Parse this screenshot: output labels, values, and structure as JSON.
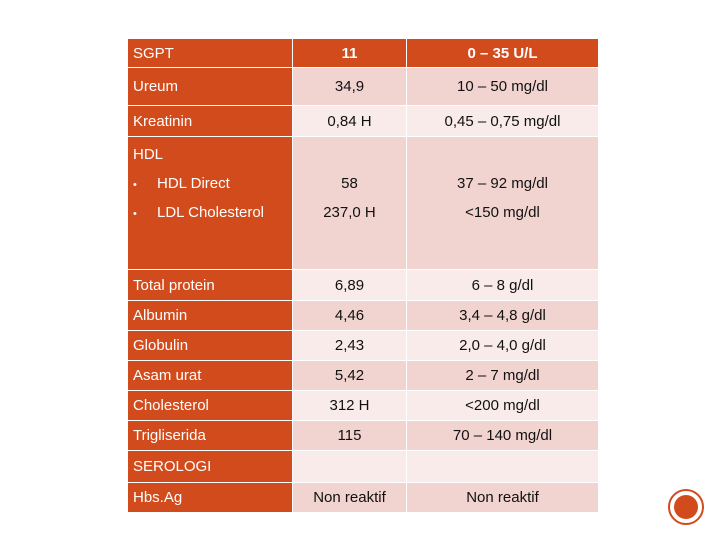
{
  "header": {
    "test": "SGPT",
    "result": "11",
    "reference": "0 – 35 U/L"
  },
  "rows": {
    "ureum": {
      "test": "Ureum",
      "result": "34,9",
      "reference": "10 – 50 mg/dl"
    },
    "kreatinin": {
      "test": "Kreatinin",
      "result": "0,84 H",
      "reference": "0,45 – 0,75 mg/dl"
    },
    "hdl": {
      "section": "HDL",
      "bullet": "•",
      "hdl_direct": {
        "test": "HDL Direct",
        "result": "58",
        "reference": "37 – 92 mg/dl"
      },
      "ldl": {
        "test": "LDL Cholesterol",
        "result": "237,0 H",
        "reference": "<150 mg/dl"
      }
    },
    "total_protein": {
      "test": "Total protein",
      "result": "6,89",
      "reference": "6 – 8 g/dl"
    },
    "albumin": {
      "test": "Albumin",
      "result": "4,46",
      "reference": "3,4 – 4,8 g/dl"
    },
    "globulin": {
      "test": "Globulin",
      "result": "2,43",
      "reference": "2,0 – 4,0 g/dl"
    },
    "asam_urat": {
      "test": "Asam urat",
      "result": "5,42",
      "reference": "2 – 7 mg/dl"
    },
    "cholesterol": {
      "test": "Cholesterol",
      "result": "312 H",
      "reference": "<200 mg/dl"
    },
    "trigliserida": {
      "test": "Trigliserida",
      "result": "115",
      "reference": "70 – 140 mg/dl"
    },
    "serologi": {
      "section": "SEROLOGI"
    },
    "hbsag": {
      "test": "Hbs.Ag",
      "result": "Non reaktif",
      "reference": "Non reaktif"
    }
  },
  "colors": {
    "accent": "#d24b1c",
    "row_dark": "#f1d4d0",
    "row_light": "#f8ebe9"
  },
  "corner_icon": "circle-button-icon"
}
